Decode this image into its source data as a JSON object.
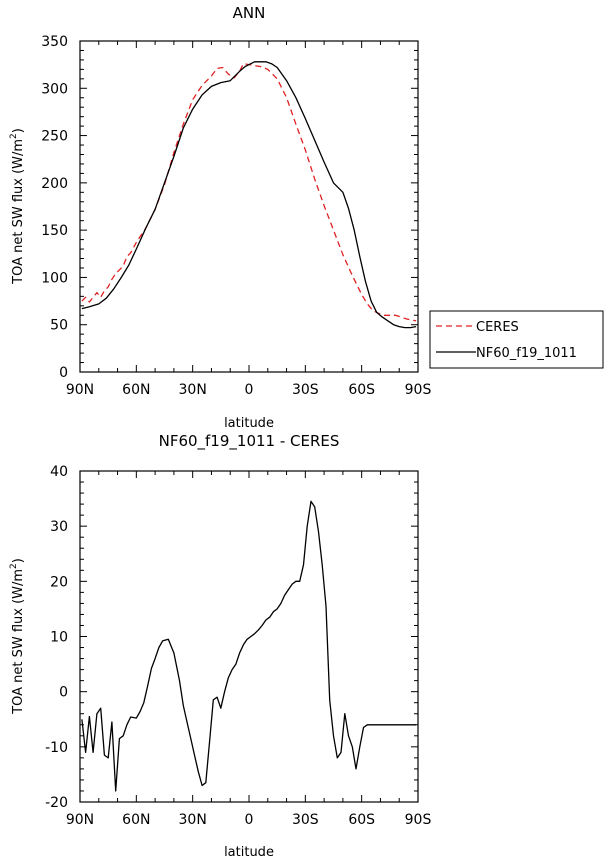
{
  "chart_data": [
    {
      "type": "line",
      "title": "ANN",
      "xlabel": "latitude",
      "ylabel_main": "TOA net SW flux (W/m",
      "ylabel_sup": "2",
      "ylabel_close": ")",
      "xlim": [
        90,
        -90
      ],
      "ylim": [
        0,
        350
      ],
      "yticks": [
        0,
        50,
        100,
        150,
        200,
        250,
        300,
        350
      ],
      "xticks": [
        90,
        60,
        30,
        0,
        -30,
        -60,
        -90
      ],
      "xticklabels": [
        "90N",
        "60N",
        "30N",
        "0",
        "30S",
        "60S",
        "90S"
      ],
      "legend": [
        "CERES",
        "NF60_f19_1011"
      ],
      "series": [
        {
          "name": "CERES",
          "color": "#e02020",
          "dash": "dashed",
          "x": [
            89,
            87,
            85,
            83,
            81,
            79,
            77,
            75,
            73,
            71,
            69,
            67,
            65,
            63,
            60,
            55,
            50,
            45,
            40,
            35,
            30,
            25,
            20,
            17,
            14,
            11,
            8,
            5,
            3,
            0,
            -3,
            -6,
            -10,
            -15,
            -20,
            -25,
            -30,
            -35,
            -40,
            -45,
            -50,
            -55,
            -60,
            -63,
            -66,
            -69,
            -72,
            -75,
            -78,
            -81,
            -84,
            -87,
            -89
          ],
          "y": [
            75,
            79,
            74,
            79,
            84,
            79,
            86,
            90,
            98,
            104,
            108,
            112,
            122,
            126,
            137,
            152,
            172,
            198,
            232,
            262,
            288,
            303,
            313,
            321,
            322,
            315,
            311,
            318,
            326,
            325,
            324,
            323,
            320,
            310,
            290,
            262,
            235,
            204,
            176,
            150,
            124,
            102,
            82,
            72,
            65,
            62,
            60,
            60,
            60,
            58,
            56,
            55,
            54
          ]
        },
        {
          "name": "NF60_f19_1011",
          "color": "#000000",
          "dash": "solid",
          "x": [
            89,
            85,
            80,
            76,
            72,
            68,
            64,
            60,
            55,
            50,
            45,
            40,
            35,
            30,
            25,
            20,
            15,
            10,
            5,
            2,
            0,
            -3,
            -6,
            -9,
            -12,
            -15,
            -20,
            -25,
            -30,
            -35,
            -40,
            -45,
            -50,
            -53,
            -56,
            -59,
            -62,
            -65,
            -68,
            -71,
            -74,
            -77,
            -80,
            -83,
            -86,
            -89
          ],
          "y": [
            67,
            69,
            72,
            78,
            88,
            100,
            113,
            130,
            152,
            172,
            200,
            228,
            258,
            278,
            293,
            302,
            306,
            308,
            318,
            323,
            325,
            328,
            328,
            328,
            326,
            322,
            308,
            290,
            268,
            245,
            222,
            200,
            190,
            173,
            150,
            122,
            96,
            75,
            63,
            58,
            54,
            50,
            48,
            47,
            47,
            48
          ]
        }
      ]
    },
    {
      "type": "line",
      "title": "NF60_f19_1011 - CERES",
      "xlabel": "latitude",
      "ylabel_main": "TOA net SW flux (W/m",
      "ylabel_sup": "2",
      "ylabel_close": ")",
      "xlim": [
        90,
        -90
      ],
      "ylim": [
        -20,
        40
      ],
      "yticks": [
        -20,
        -10,
        0,
        10,
        20,
        30,
        40
      ],
      "xticks": [
        90,
        60,
        30,
        0,
        -30,
        -60,
        -90
      ],
      "xticklabels": [
        "90N",
        "60N",
        "30N",
        "0",
        "30S",
        "60S",
        "90S"
      ],
      "series": [
        {
          "name": "NF60_f19_1011 - CERES",
          "color": "#000000",
          "dash": "solid",
          "x": [
            89,
            87,
            85,
            83,
            81,
            79,
            77,
            75,
            73,
            71,
            69,
            67,
            65,
            63,
            60,
            58,
            56,
            54,
            52,
            50,
            48,
            46,
            43,
            40,
            37,
            35,
            33,
            31,
            29,
            27,
            25,
            23,
            21,
            19,
            17,
            15,
            13,
            11,
            9,
            7,
            5,
            3,
            1,
            -1,
            -3,
            -5,
            -7,
            -9,
            -11,
            -13,
            -15,
            -17,
            -19,
            -21,
            -23,
            -25,
            -27,
            -29,
            -31,
            -33,
            -35,
            -37,
            -39,
            -41,
            -43,
            -45,
            -47,
            -49,
            -51,
            -53,
            -55,
            -57,
            -59,
            -61,
            -63,
            -65,
            -67,
            -69,
            -71,
            -73,
            -75,
            -77,
            -79,
            -81,
            -83,
            -85,
            -87,
            -89
          ],
          "y": [
            -5,
            -11,
            -4.5,
            -11,
            -4,
            -3,
            -11.5,
            -12,
            -5.5,
            -18,
            -8.5,
            -8,
            -6,
            -4.6,
            -4.8,
            -3.6,
            -2,
            1,
            4.2,
            6,
            8,
            9.2,
            9.5,
            7,
            2,
            -2.5,
            -5.5,
            -8.5,
            -11.5,
            -14.5,
            -17,
            -16.5,
            -9,
            -1.5,
            -1,
            -3,
            0,
            2.5,
            4,
            5,
            7,
            8.5,
            9.5,
            10,
            10.5,
            11.2,
            12,
            13,
            13.5,
            14.5,
            15,
            16,
            17.5,
            18.5,
            19.5,
            20,
            20,
            23,
            30,
            34.5,
            33.5,
            29,
            23,
            15.5,
            -1.5,
            -8,
            -12,
            -11,
            -4,
            -8,
            -10,
            -14,
            -10,
            -6.5,
            -6,
            -6,
            -6,
            -6,
            -6,
            -6,
            -6,
            -6,
            -6,
            -6,
            -6,
            -6,
            -6,
            -6
          ]
        }
      ]
    }
  ]
}
